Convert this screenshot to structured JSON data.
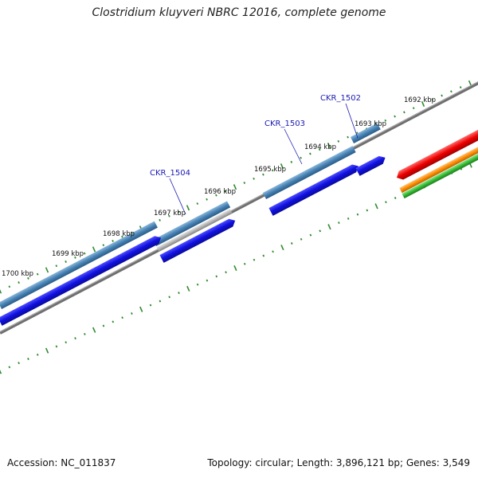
{
  "title": "Clostridium kluyveri NBRC 12016, complete genome",
  "footer": {
    "accession": "Accession: NC_011837",
    "summary": "Topology: circular; Length: 3,896,121 bp; Genes: 3,549"
  },
  "ticks": [
    "1692 kbp",
    "1693 kbp",
    "1694 kbp",
    "1695 kbp",
    "1696 kbp",
    "1697 kbp",
    "1698 kbp",
    "1699 kbp",
    "1700 kbp"
  ],
  "gene_labels": [
    "CKR_1502",
    "CKR_1503",
    "CKR_1504"
  ],
  "colors": {
    "tick_dots": "#2e8b2e",
    "backbone": "#777777",
    "gene_outer": "#4682b4",
    "gene_blue": "#1010e0",
    "gene_grey": "#b8b8b8",
    "red": "#ee0000",
    "orange": "#ff8c00",
    "green": "#33bb33",
    "label": "#1a1ab4"
  }
}
